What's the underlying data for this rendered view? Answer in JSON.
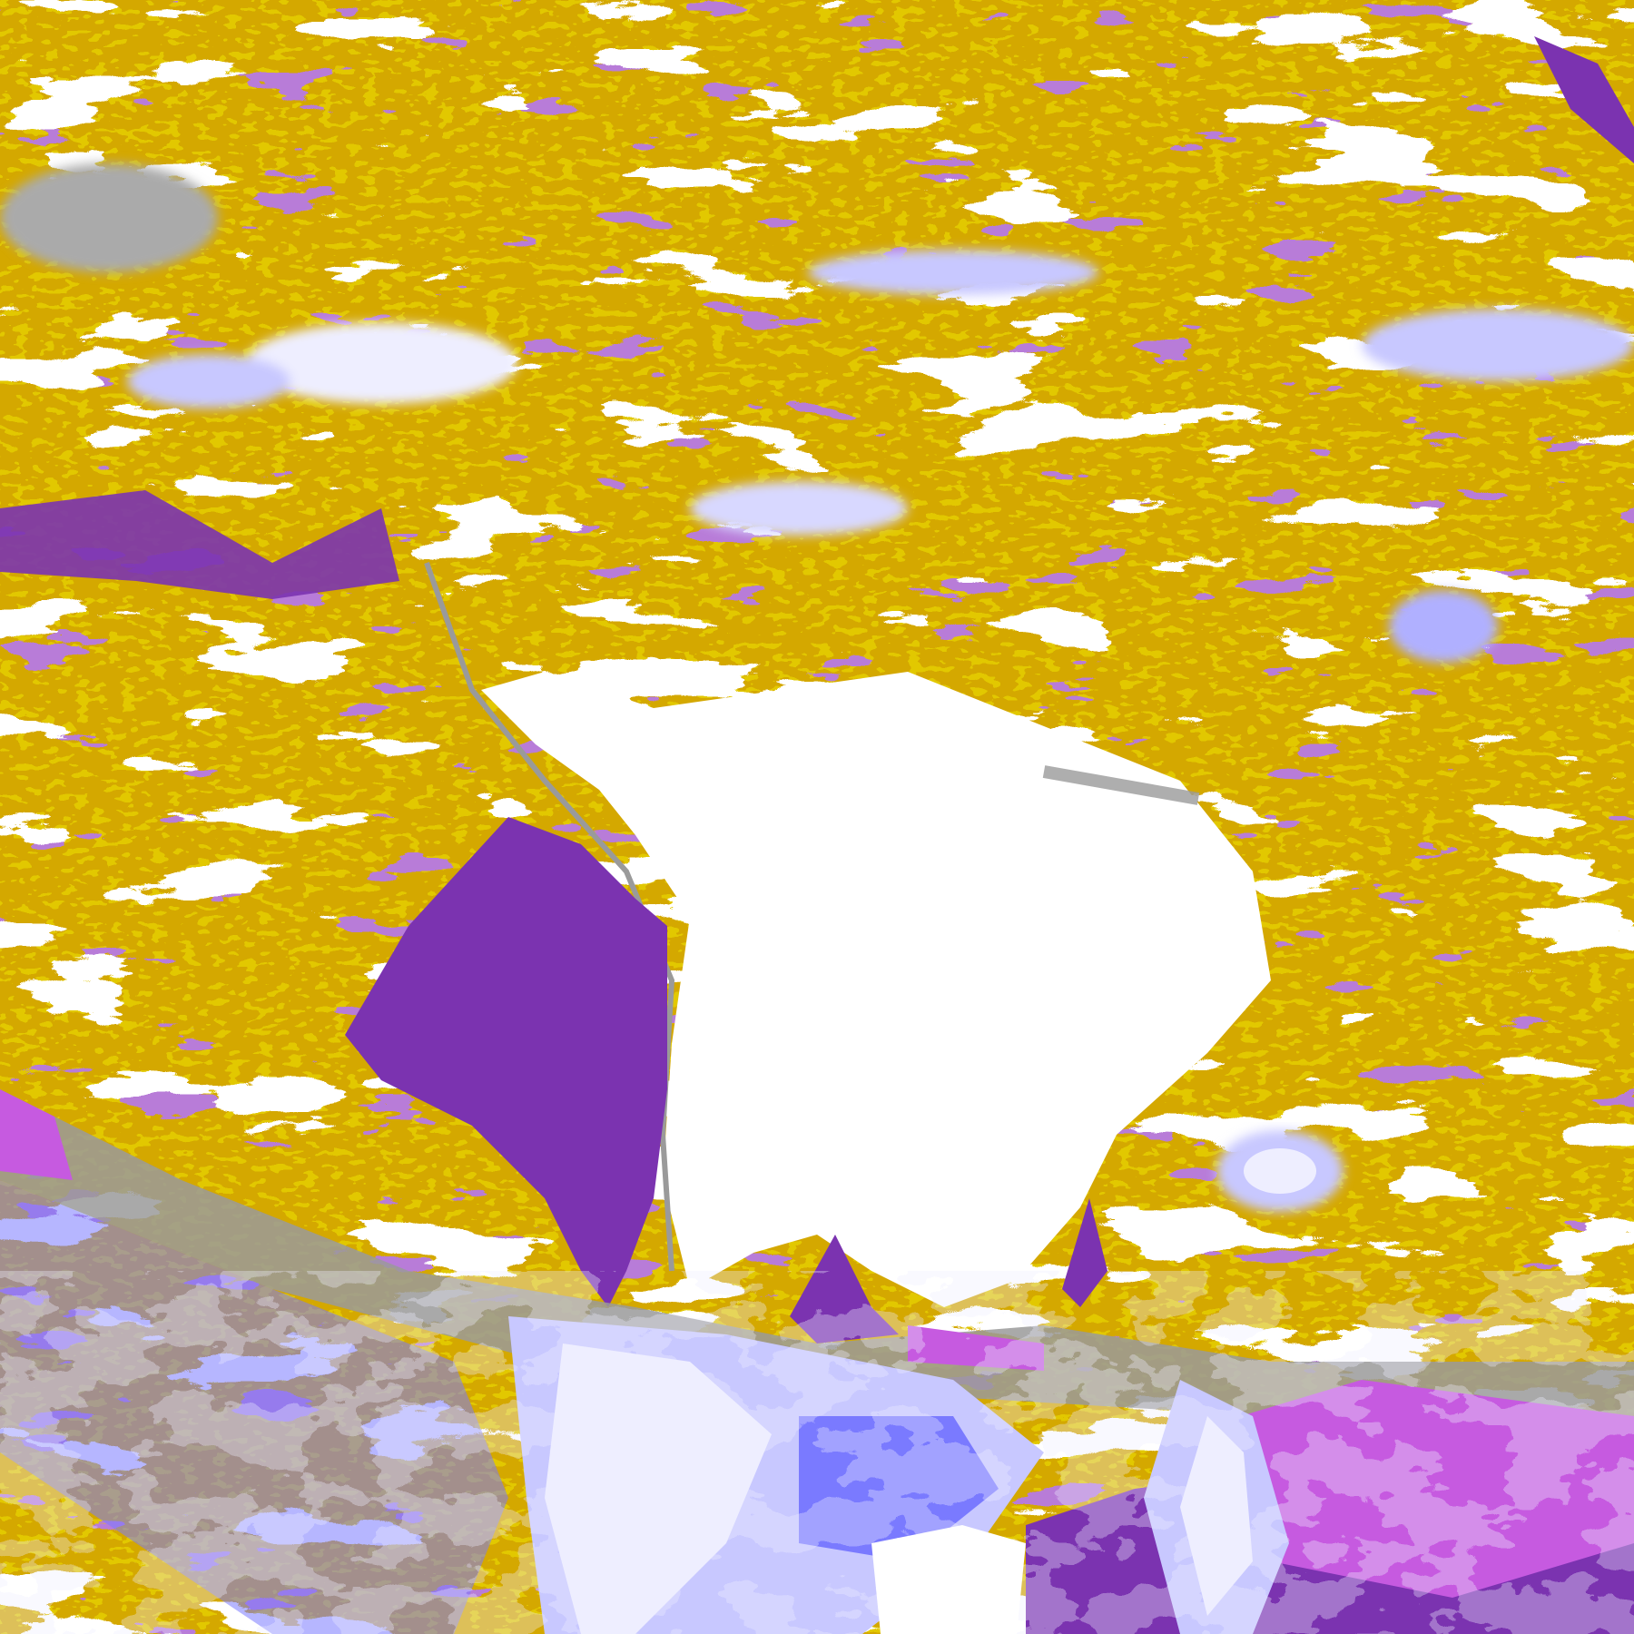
{
  "image": {
    "kind": "false-color satellite cloud classification over South America",
    "palette": {
      "clear": "#ffffff",
      "low_cloud": "#d4a800",
      "dark_gold": "#c49a00",
      "purple": "#7b33b0",
      "magenta": "#c65ae0",
      "gray": "#9a9a9a",
      "blue": "#7a7aff",
      "lavender": "#c8c8ff",
      "pale": "#eeeeff"
    }
  }
}
